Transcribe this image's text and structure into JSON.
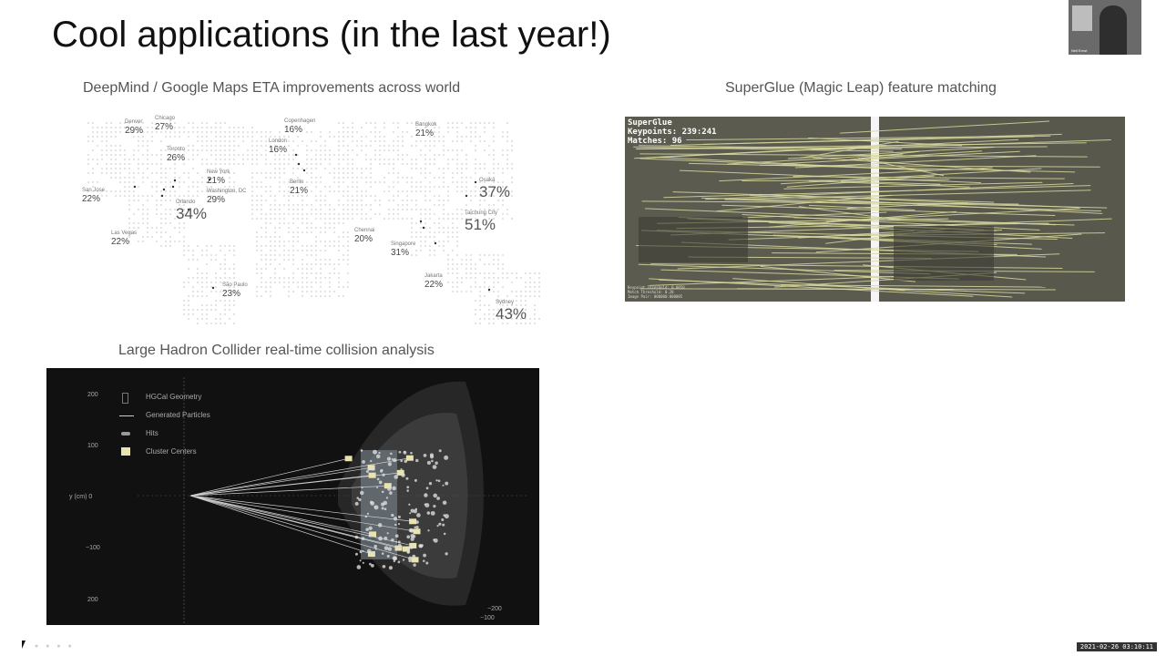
{
  "slide": {
    "title": "Cool applications (in the last year!)"
  },
  "map": {
    "caption": "DeepMind / Google Maps ETA improvements across world",
    "cities": [
      {
        "name": "Denver",
        "value": "29%"
      },
      {
        "name": "Chicago",
        "value": "27%"
      },
      {
        "name": "Toronto",
        "value": "26%"
      },
      {
        "name": "New York",
        "value": "21%"
      },
      {
        "name": "Washington, DC",
        "value": "29%"
      },
      {
        "name": "Orlando",
        "value": "34%"
      },
      {
        "name": "San Jose",
        "value": "22%"
      },
      {
        "name": "Las Vegas",
        "value": "22%"
      },
      {
        "name": "São Paulo",
        "value": "23%"
      },
      {
        "name": "Copenhagen",
        "value": "16%"
      },
      {
        "name": "London",
        "value": "16%"
      },
      {
        "name": "Berlin",
        "value": "21%"
      },
      {
        "name": "Bangkok",
        "value": "21%"
      },
      {
        "name": "Osaka",
        "value": "37%"
      },
      {
        "name": "Taichung City",
        "value": "51%"
      },
      {
        "name": "Chennai",
        "value": "20%"
      },
      {
        "name": "Singapore",
        "value": "31%"
      },
      {
        "name": "Jakarta",
        "value": "22%"
      },
      {
        "name": "Sydney",
        "value": "43%"
      }
    ]
  },
  "superglue": {
    "caption": "SuperGlue (Magic Leap) feature matching",
    "hud_name": "SuperGlue",
    "hud_keypoints": "Keypoints: 239:241",
    "hud_matches": "Matches: 96",
    "footer_lines": [
      "Keypoint Threshold: 0.0050",
      "Match Threshold: 0.20",
      "Image Pair: 000000:000005"
    ]
  },
  "lhc": {
    "caption": "Large Hadron Collider real-time collision analysis",
    "legend": [
      "HGCal Geometry",
      "Generated Particles",
      "Hits",
      "Cluster Centers"
    ],
    "y_ticks": [
      "200",
      "100",
      "y (cm) 0",
      "−100",
      "200"
    ],
    "x_ticks": [
      "−200",
      "−100"
    ]
  },
  "overlay": {
    "webcam_name": "Neil Ernst",
    "timestamp": "2021-02-26 03:10:11"
  },
  "colors": {
    "match_lines": "#d8d8a0",
    "lhc_bg": "#111111",
    "cluster": "#e9e3b0"
  }
}
